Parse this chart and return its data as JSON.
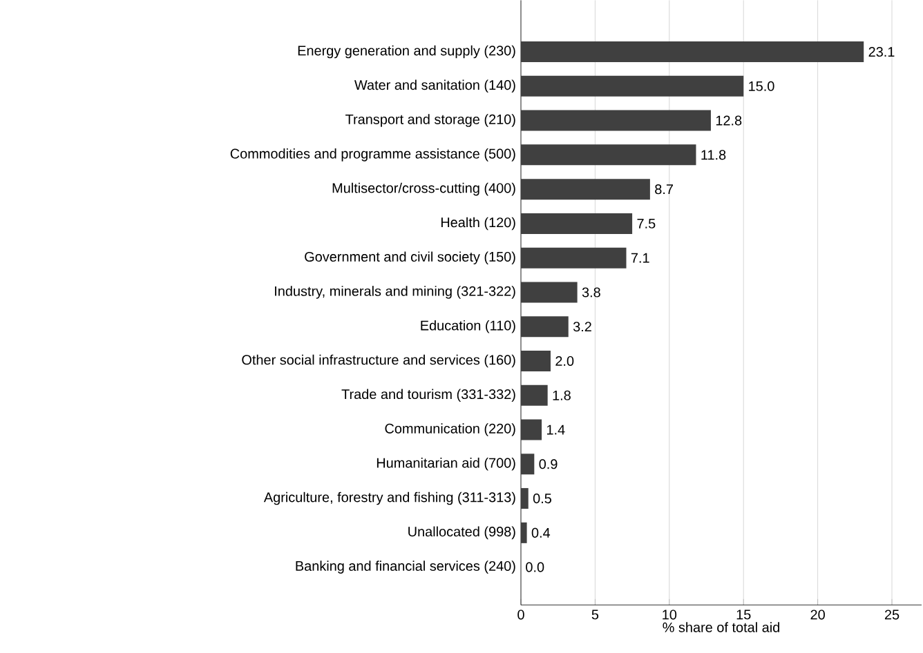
{
  "chart_data": {
    "type": "bar",
    "orientation": "horizontal",
    "xlabel": "% share of total aid",
    "categories": [
      "Energy generation and supply (230)",
      "Water and sanitation (140)",
      "Transport and storage (210)",
      "Commodities and programme assistance (500)",
      "Multisector/cross-cutting (400)",
      "Health (120)",
      "Government and civil society (150)",
      "Industry, minerals and mining (321-322)",
      "Education (110)",
      "Other social infrastructure and services (160)",
      "Trade and tourism (331-332)",
      "Communication (220)",
      "Humanitarian aid (700)",
      "Agriculture, forestry and fishing (311-313)",
      "Unallocated (998)",
      "Banking and financial services (240)"
    ],
    "values": [
      23.1,
      15.0,
      12.8,
      11.8,
      8.7,
      7.5,
      7.1,
      3.8,
      3.2,
      2.0,
      1.8,
      1.4,
      0.9,
      0.5,
      0.4,
      0.0
    ],
    "value_labels": [
      "23.1",
      "15.0",
      "12.8",
      "11.8",
      "8.7",
      "7.5",
      "7.1",
      "3.8",
      "3.2",
      "2.0",
      "1.8",
      "1.4",
      "0.9",
      "0.5",
      "0.4",
      "0.0"
    ],
    "color": "#404040",
    "xlim": [
      0,
      27
    ],
    "xticks": [
      0,
      5,
      10,
      15,
      20,
      25
    ],
    "grid": "x"
  }
}
